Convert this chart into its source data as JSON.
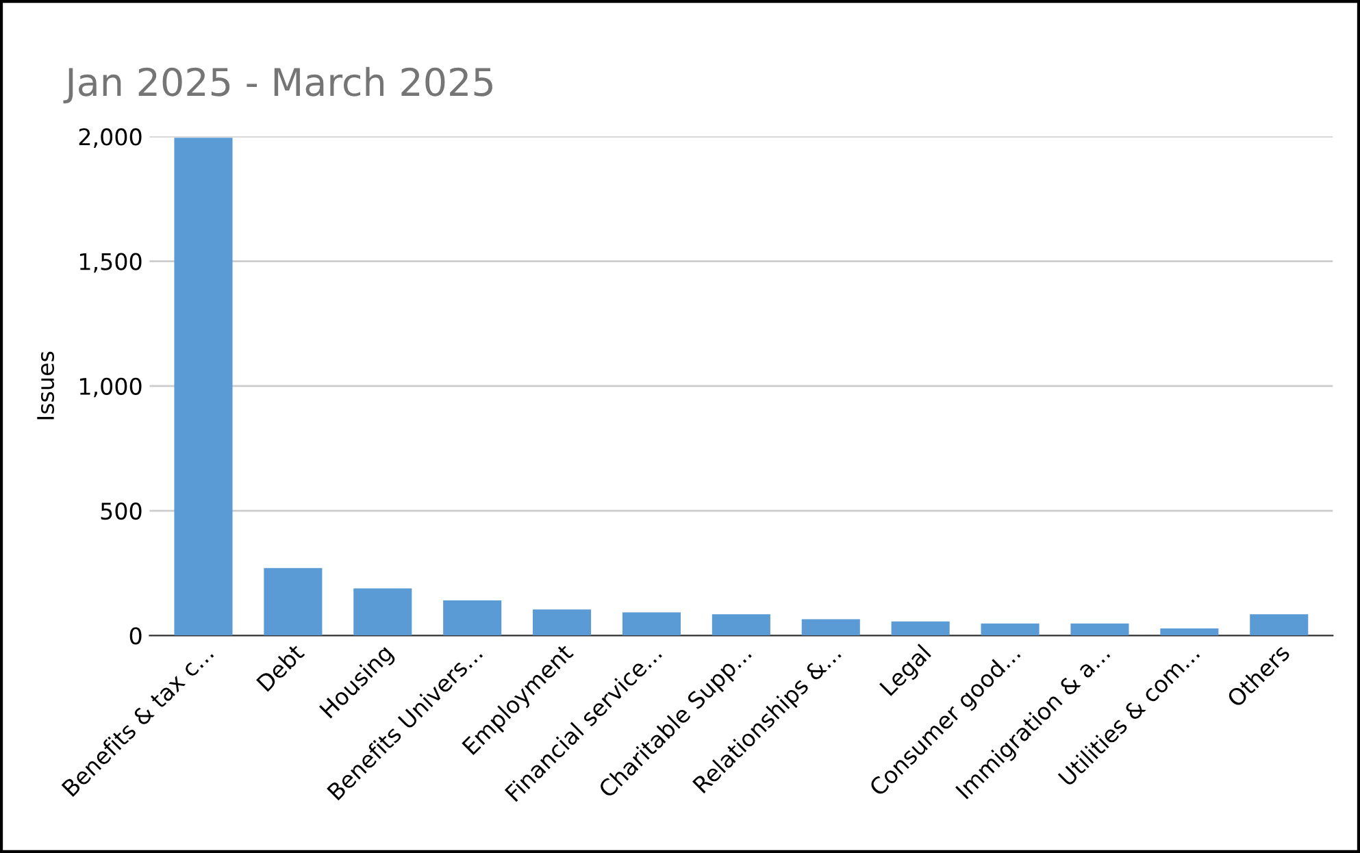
{
  "chart_data": {
    "type": "bar",
    "title": "Jan 2025 - March 2025",
    "ylabel": "Issues",
    "categories": [
      "Benefits & tax c...",
      "Debt",
      "Housing",
      "Benefits Univers...",
      "Employment",
      "Financial service...",
      "Charitable Supp...",
      "Relationships &...",
      "Legal",
      "Consumer good...",
      "Immigration & a...",
      "Utilities & com...",
      "Others"
    ],
    "values": [
      1995,
      270,
      189,
      141,
      104,
      93,
      85,
      65,
      56,
      48,
      48,
      28,
      85
    ],
    "color": "#5b9bd5",
    "ylim": [
      0,
      2000
    ],
    "yticks": [
      {
        "value": 0,
        "label": "0"
      },
      {
        "value": 500,
        "label": "500"
      },
      {
        "value": 1000,
        "label": "1,000"
      },
      {
        "value": 1500,
        "label": "1,500"
      },
      {
        "value": 2000,
        "label": "2,000"
      }
    ],
    "grid": "y"
  }
}
